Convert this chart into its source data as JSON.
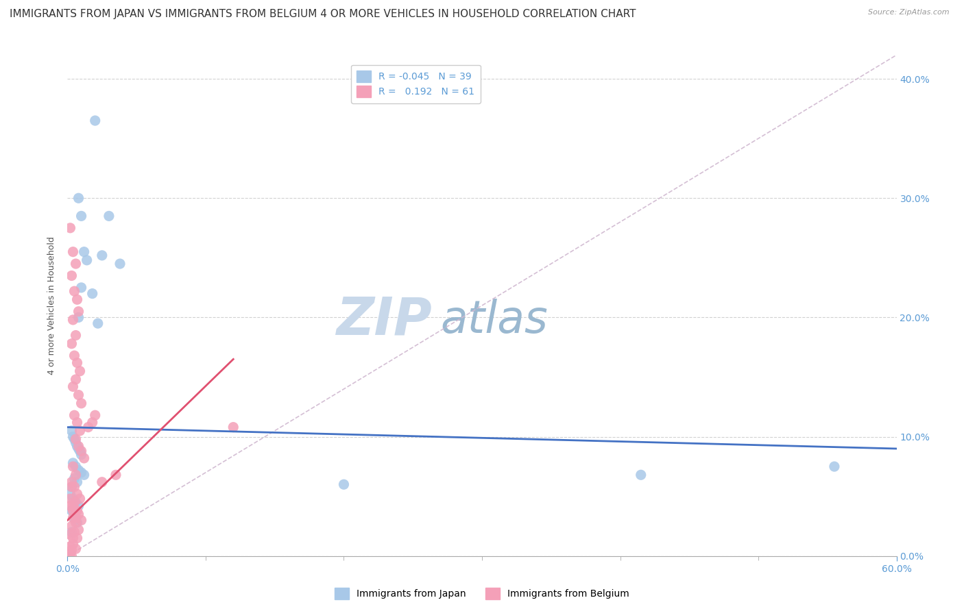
{
  "title": "IMMIGRANTS FROM JAPAN VS IMMIGRANTS FROM BELGIUM 4 OR MORE VEHICLES IN HOUSEHOLD CORRELATION CHART",
  "source": "Source: ZipAtlas.com",
  "ylabel": "4 or more Vehicles in Household",
  "xlim": [
    0.0,
    0.6
  ],
  "ylim": [
    0.0,
    0.42
  ],
  "xticks_major": [
    0.0,
    0.6
  ],
  "xticks_minor": [
    0.1,
    0.2,
    0.3,
    0.4,
    0.5
  ],
  "yticks": [
    0.0,
    0.1,
    0.2,
    0.3,
    0.4
  ],
  "right_yticklabels": [
    "0.0%",
    "10.0%",
    "20.0%",
    "30.0%",
    "40.0%"
  ],
  "bottom_xticklabels_left": "0.0%",
  "bottom_xticklabels_right": "60.0%",
  "legend_R_japan": "-0.045",
  "legend_N_japan": "39",
  "legend_R_belgium": "0.192",
  "legend_N_belgium": "61",
  "japan_color": "#a8c8e8",
  "belgium_color": "#f4a0b8",
  "japan_line_color": "#4472c4",
  "belgium_line_color": "#e05070",
  "trendline_dashed_color": "#d0b8d0",
  "japan_scatter": [
    [
      0.02,
      0.365
    ],
    [
      0.008,
      0.3
    ],
    [
      0.03,
      0.285
    ],
    [
      0.012,
      0.255
    ],
    [
      0.025,
      0.252
    ],
    [
      0.014,
      0.248
    ],
    [
      0.038,
      0.245
    ],
    [
      0.01,
      0.225
    ],
    [
      0.018,
      0.22
    ],
    [
      0.008,
      0.2
    ],
    [
      0.022,
      0.195
    ],
    [
      0.01,
      0.285
    ],
    [
      0.003,
      0.105
    ],
    [
      0.004,
      0.1
    ],
    [
      0.005,
      0.098
    ],
    [
      0.006,
      0.095
    ],
    [
      0.007,
      0.092
    ],
    [
      0.008,
      0.09
    ],
    [
      0.009,
      0.088
    ],
    [
      0.01,
      0.085
    ],
    [
      0.004,
      0.078
    ],
    [
      0.006,
      0.075
    ],
    [
      0.008,
      0.072
    ],
    [
      0.01,
      0.07
    ],
    [
      0.012,
      0.068
    ],
    [
      0.005,
      0.065
    ],
    [
      0.007,
      0.062
    ],
    [
      0.003,
      0.058
    ],
    [
      0.002,
      0.052
    ],
    [
      0.004,
      0.048
    ],
    [
      0.006,
      0.045
    ],
    [
      0.008,
      0.042
    ],
    [
      0.003,
      0.038
    ],
    [
      0.005,
      0.032
    ],
    [
      0.007,
      0.028
    ],
    [
      0.003,
      0.02
    ],
    [
      0.2,
      0.06
    ],
    [
      0.415,
      0.068
    ],
    [
      0.555,
      0.075
    ]
  ],
  "belgium_scatter": [
    [
      0.002,
      0.275
    ],
    [
      0.004,
      0.255
    ],
    [
      0.006,
      0.245
    ],
    [
      0.003,
      0.235
    ],
    [
      0.005,
      0.222
    ],
    [
      0.007,
      0.215
    ],
    [
      0.008,
      0.205
    ],
    [
      0.004,
      0.198
    ],
    [
      0.006,
      0.185
    ],
    [
      0.003,
      0.178
    ],
    [
      0.005,
      0.168
    ],
    [
      0.007,
      0.162
    ],
    [
      0.009,
      0.155
    ],
    [
      0.006,
      0.148
    ],
    [
      0.004,
      0.142
    ],
    [
      0.008,
      0.135
    ],
    [
      0.01,
      0.128
    ],
    [
      0.005,
      0.118
    ],
    [
      0.007,
      0.112
    ],
    [
      0.009,
      0.105
    ],
    [
      0.006,
      0.098
    ],
    [
      0.008,
      0.092
    ],
    [
      0.01,
      0.088
    ],
    [
      0.012,
      0.082
    ],
    [
      0.004,
      0.075
    ],
    [
      0.006,
      0.068
    ],
    [
      0.015,
      0.108
    ],
    [
      0.018,
      0.112
    ],
    [
      0.02,
      0.118
    ],
    [
      0.003,
      0.062
    ],
    [
      0.005,
      0.058
    ],
    [
      0.007,
      0.052
    ],
    [
      0.009,
      0.048
    ],
    [
      0.004,
      0.042
    ],
    [
      0.006,
      0.038
    ],
    [
      0.008,
      0.035
    ],
    [
      0.01,
      0.03
    ],
    [
      0.003,
      0.025
    ],
    [
      0.005,
      0.02
    ],
    [
      0.007,
      0.015
    ],
    [
      0.004,
      0.01
    ],
    [
      0.006,
      0.006
    ],
    [
      0.002,
      0.002
    ],
    [
      0.003,
      0.0
    ],
    [
      0.002,
      0.042
    ],
    [
      0.004,
      0.032
    ],
    [
      0.006,
      0.028
    ],
    [
      0.008,
      0.022
    ],
    [
      0.002,
      0.018
    ],
    [
      0.004,
      0.015
    ],
    [
      0.002,
      0.008
    ],
    [
      0.003,
      0.005
    ],
    [
      0.025,
      0.062
    ],
    [
      0.035,
      0.068
    ],
    [
      0.12,
      0.108
    ],
    [
      0.002,
      0.048
    ],
    [
      0.004,
      0.038
    ],
    [
      0.006,
      0.032
    ],
    [
      0.003,
      0.058
    ],
    [
      0.005,
      0.045
    ],
    [
      0.007,
      0.038
    ]
  ],
  "background_color": "#ffffff",
  "grid_color": "#cccccc",
  "axis_label_color": "#5b9bd5",
  "title_fontsize": 11,
  "axis_fontsize": 9,
  "tick_fontsize": 10,
  "legend_fontsize": 10,
  "watermark_zip_color": "#c8d8ea",
  "watermark_atlas_color": "#9ab8d0",
  "watermark_fontsize": 55,
  "scatter_size": 120,
  "japan_line_x0": 0.0,
  "japan_line_x1": 0.6,
  "japan_line_y0": 0.108,
  "japan_line_y1": 0.09,
  "belgium_line_x0": 0.0,
  "belgium_line_x1": 0.12,
  "belgium_line_y0": 0.03,
  "belgium_line_y1": 0.165
}
